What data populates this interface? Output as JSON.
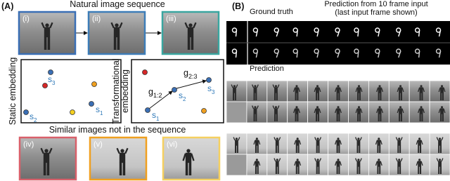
{
  "panel_a": {
    "label": "(A)",
    "top_title": "Natural image sequence",
    "top_frames": [
      "(i)",
      "(ii)",
      "(iii)"
    ],
    "static_label": "Static embedding",
    "trans_label": [
      "Transformational",
      "embedding"
    ],
    "static_points": [
      {
        "base": "s",
        "sub": "3"
      },
      {
        "base": "s",
        "sub": "2"
      },
      {
        "base": "s",
        "sub": "1"
      }
    ],
    "trans_points": [
      {
        "base": "s",
        "sub": "1"
      },
      {
        "base": "s",
        "sub": "2"
      },
      {
        "base": "s",
        "sub": "3"
      }
    ],
    "transforms": [
      {
        "base": "g",
        "sub": "1:2"
      },
      {
        "base": "g",
        "sub": "2:3"
      }
    ],
    "bottom_title": "Similar images not in the sequence",
    "bottom_frames": [
      "(iv)",
      "(v)",
      "(vi)"
    ]
  },
  "panel_b": {
    "label": "(B)",
    "ground_truth": "Ground truth",
    "prediction_header": [
      "Prediction from 10 frame input",
      "(last input frame shown)"
    ],
    "prediction": "Prediction"
  }
}
